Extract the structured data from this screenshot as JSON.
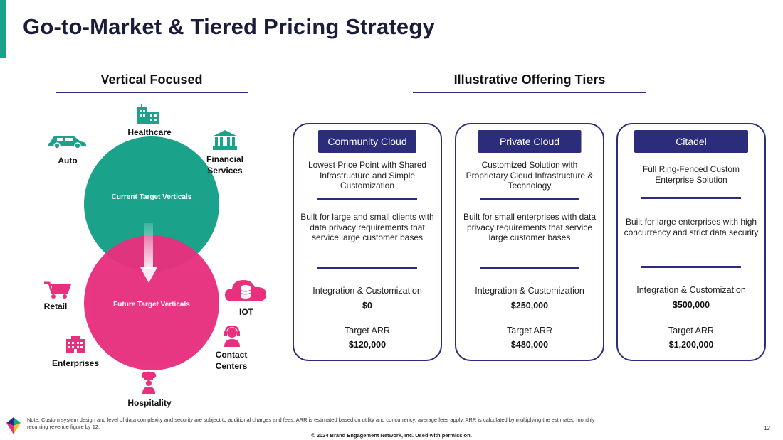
{
  "header": {
    "title": "Go-to-Market & Tiered Pricing Strategy"
  },
  "sections": {
    "left_heading": "Vertical Focused",
    "right_heading": "Illustrative Offering Tiers"
  },
  "venn": {
    "current_label": "Current Target Verticals",
    "future_label": "Future Target Verticals",
    "current_color": "#1aa38a",
    "future_color": "#e8317e"
  },
  "verticals": {
    "healthcare": {
      "label": "Healthcare",
      "icon": "hospital-building-icon"
    },
    "auto": {
      "label": "Auto",
      "icon": "car-icon"
    },
    "financial": {
      "label": "Financial\nServices",
      "icon": "bank-icon"
    },
    "retail": {
      "label": "Retail",
      "icon": "shopping-cart-icon"
    },
    "iot": {
      "label": "IOT",
      "icon": "cloud-database-icon"
    },
    "enterprises": {
      "label": "Enterprises",
      "icon": "office-building-icon"
    },
    "contact": {
      "label": "Contact\nCenters",
      "icon": "headset-agent-icon"
    },
    "hospitality": {
      "label": "Hospitality",
      "icon": "chef-icon"
    }
  },
  "tiers": [
    {
      "name": "Community Cloud",
      "description": "Lowest Price Point with Shared Infrastructure and Simple Customization",
      "audience": "Built for large and small clients with data privacy requirements that service large customer bases",
      "integration_label": "Integration & Customization",
      "integration_price": "$0",
      "arr_label": "Target ARR",
      "arr_value": "$120,000"
    },
    {
      "name": "Private Cloud",
      "description": "Customized Solution with Proprietary Cloud Infrastructure & Technology",
      "audience": "Built for small enterprises with data privacy requirements that service large customer bases",
      "integration_label": "Integration & Customization",
      "integration_price": "$250,000",
      "arr_label": "Target ARR",
      "arr_value": "$480,000"
    },
    {
      "name": "Citadel",
      "description": "Full Ring-Fenced Custom Enterprise Solution",
      "audience": "Built for large enterprises with high concurrency and strict data security",
      "integration_label": "Integration & Customization",
      "integration_price": "$500,000",
      "arr_label": "Target ARR",
      "arr_value": "$1,200,000"
    }
  ],
  "footer": {
    "note": "Note: Custom system design and level of data complexity and security are subject to additional charges and fees. ARR is estimated based on utility and concurrency, average fees apply. ARR is calculated by multiplying the estimated monthly recurring revenue figure by 12.",
    "copyright": "© 2024 Brand Engagement Network, Inc. Used with permission.",
    "page_number": "12"
  },
  "colors": {
    "accent": "#1aa38a",
    "navy": "#2c2d7a",
    "pink": "#e8317e"
  }
}
